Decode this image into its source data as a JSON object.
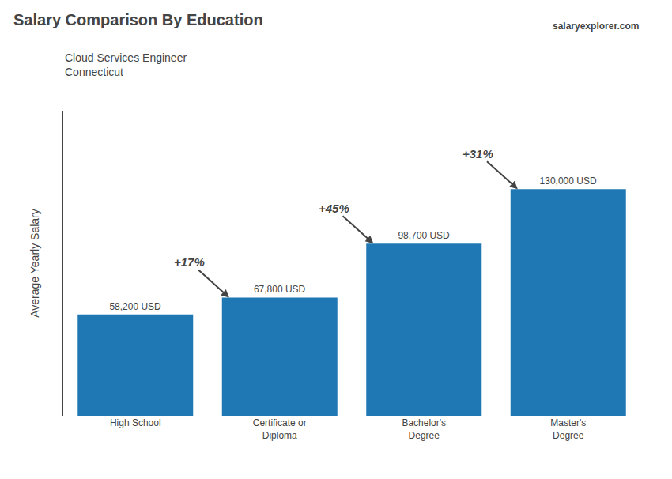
{
  "chart_data": {
    "type": "bar",
    "title": "Salary Comparison By Education",
    "subtitle": [
      "Cloud Services Engineer",
      "Connecticut"
    ],
    "source": [
      "salary",
      "explorer",
      ".com"
    ],
    "ylabel": "Average Yearly Salary",
    "categories": [
      "High School",
      "Certificate or\nDiploma",
      "Bachelor's\nDegree",
      "Master's\nDegree"
    ],
    "values": [
      58200,
      67800,
      98700,
      130000
    ],
    "value_labels": [
      "58,200 USD",
      "67,800 USD",
      "98,700 USD",
      "130,000 USD"
    ],
    "data_labels": true,
    "annotations": [
      "+17%",
      "+45%",
      "+31%"
    ],
    "ylim": [
      0,
      175000
    ],
    "grid": false,
    "tick_labels": "x"
  }
}
